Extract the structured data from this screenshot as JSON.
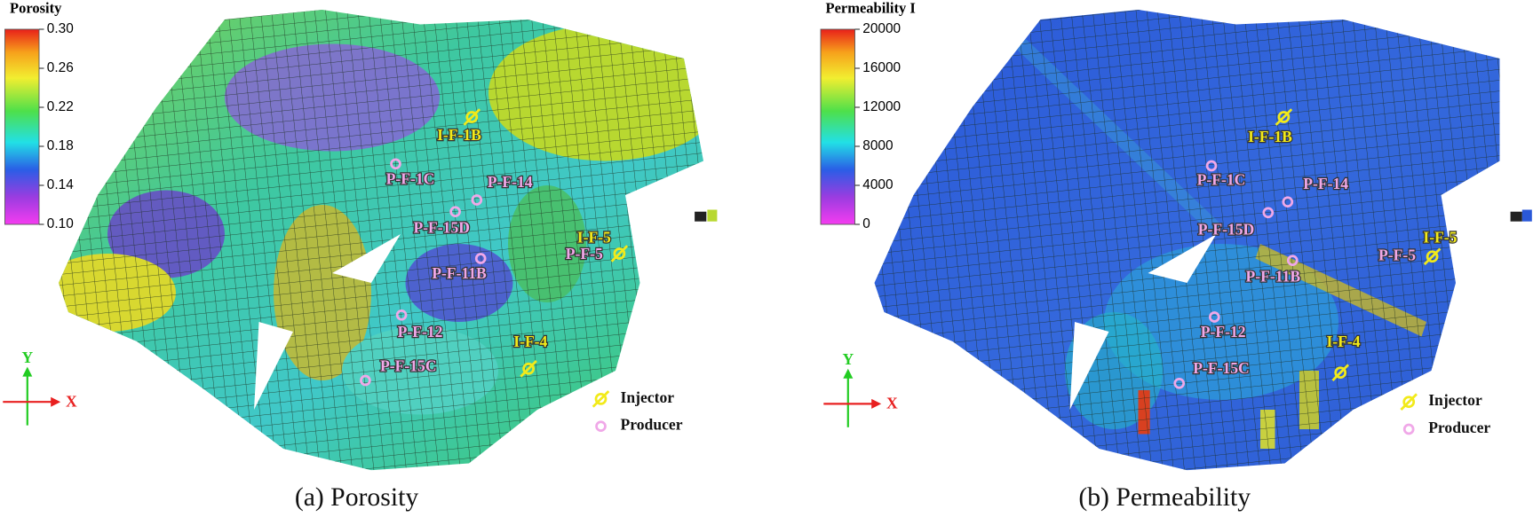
{
  "panels": [
    {
      "colorbar": {
        "title": "Porosity",
        "ticks": [
          {
            "value": 0.3,
            "label": "0.30"
          },
          0.26,
          0.22,
          0.18,
          0.14,
          {
            "value": 0.1,
            "label": "0.10"
          }
        ]
      },
      "wells": [
        "I-F-1B",
        "P-F-1C",
        "P-F-14",
        "P-F-15D",
        "I-F-5",
        "P-F-5",
        "P-F-11B",
        "P-F-12",
        "I-F-4",
        "P-F-15C"
      ],
      "legend": [
        "Injector",
        "Producer"
      ],
      "axes": [
        "Y",
        "X"
      ],
      "caption": "(a) Porosity"
    },
    {
      "colorbar": {
        "title": "Permeability I",
        "ticks": [
          20000,
          16000,
          12000,
          8000,
          4000,
          0
        ]
      },
      "wells": [
        "I-F-1B",
        "P-F-1C",
        "P-F-14",
        "P-F-15D",
        "I-F-5",
        "P-F-5",
        "P-F-11B",
        "P-F-12",
        "I-F-4",
        "P-F-15C"
      ],
      "legend": [
        "Injector",
        "Producer"
      ],
      "axes": [
        "Y",
        "X"
      ],
      "caption": "(b) Permeability"
    }
  ]
}
